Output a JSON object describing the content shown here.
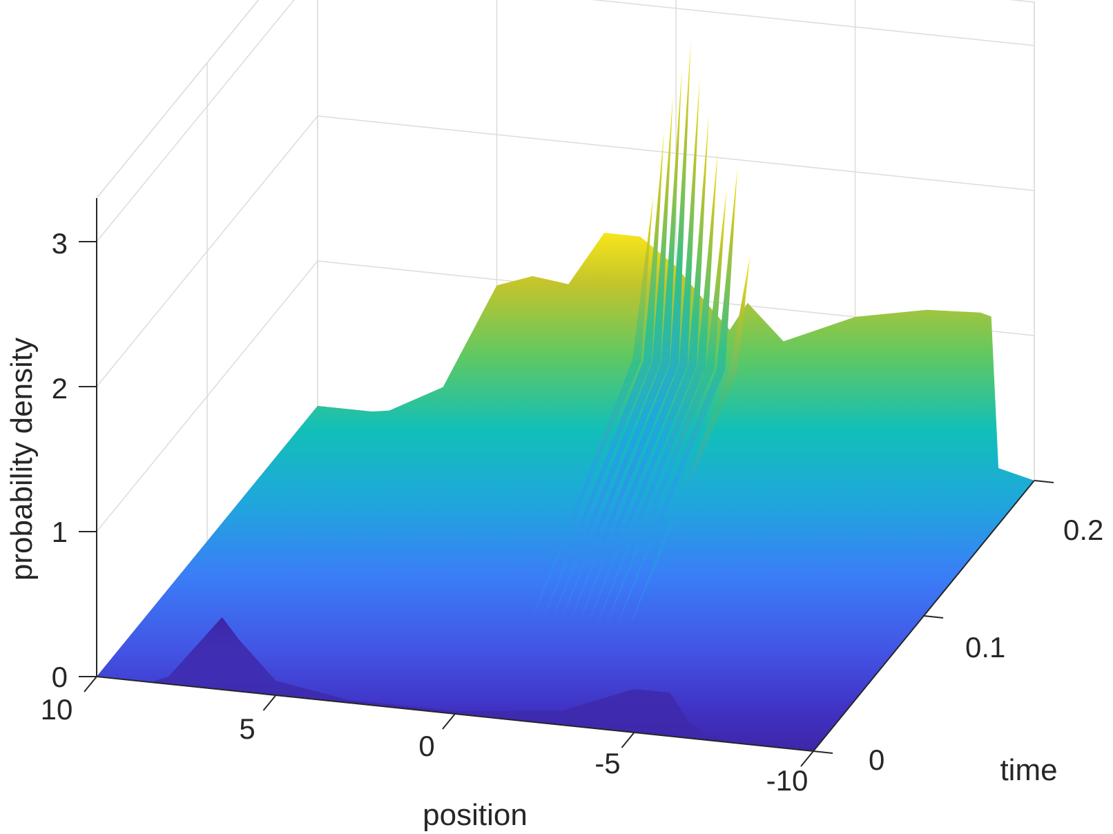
{
  "chart_data": {
    "type": "surface",
    "title": "",
    "xlabel": "position",
    "ylabel": "time",
    "zlabel": "probability density",
    "x_ticks": [
      10,
      5,
      0,
      -5,
      -10
    ],
    "x_tick_labels": [
      "10",
      "5",
      "0",
      "-5",
      "-10"
    ],
    "y_ticks": [
      0,
      0.1,
      0.2
    ],
    "y_tick_labels": [
      "0",
      "0.1",
      "0.2"
    ],
    "z_ticks": [
      0,
      1,
      2,
      3
    ],
    "z_tick_labels": [
      "0",
      "1",
      "2",
      "3"
    ],
    "xlim": [
      -10,
      10
    ],
    "ylim": [
      0,
      0.2
    ],
    "zlim": [
      0,
      3
    ],
    "colormap": "parula",
    "grid": true,
    "peak": {
      "position": -1.5,
      "time": 0.16,
      "density": 3.2
    },
    "cross_sections": [
      {
        "time": 0,
        "position": [
          -10,
          -8,
          -7,
          -6.5,
          -6,
          -5,
          -3,
          0,
          3,
          5,
          6,
          6.5,
          7,
          7.5,
          8,
          8.5,
          10
        ],
        "density": [
          0,
          0,
          0.04,
          0.12,
          0.3,
          0.3,
          0.1,
          0.02,
          0.02,
          0.1,
          0.35,
          0.5,
          0.35,
          0.2,
          0.05,
          0,
          0
        ]
      },
      {
        "time": 0.2,
        "position": [
          -10,
          -9,
          -8.8,
          -8.5,
          -7,
          -5,
          -3,
          -2,
          -1.5,
          -1,
          0,
          1,
          2,
          3,
          4,
          5,
          6.5,
          8,
          8.5,
          10
        ],
        "density": [
          0,
          0.06,
          1.1,
          1.12,
          1.1,
          1.0,
          0.78,
          1.02,
          0.82,
          0.95,
          1.22,
          1.4,
          1.4,
          1.02,
          1.05,
          0.96,
          0.22,
          0.02,
          0,
          0
        ]
      }
    ]
  }
}
